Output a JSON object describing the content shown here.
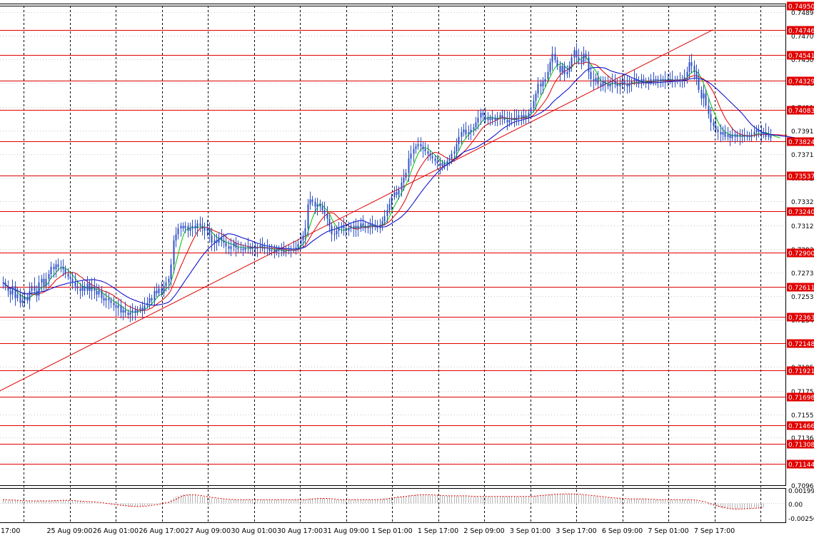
{
  "colors": {
    "background": "#ffffff",
    "grid": "#000000",
    "candles": "#2c4fc4",
    "level_line": "#e00000",
    "trendline": "#e00000",
    "ma_fast": "#00c000",
    "ma_mid": "#e00000",
    "ma_slow": "#0000c8",
    "osc_hist": "#b4b4b4",
    "osc_signal": "#e00000",
    "level_label_bg": "#e00000",
    "level_label_text": "#ffffff"
  },
  "chart_data": [
    {
      "type": "candlestick",
      "title": "",
      "xlabel": "",
      "ylabel": "",
      "ylim": [
        0.70965,
        0.7495
      ],
      "grid": true,
      "x_ticks": [
        "17:00",
        "25 Aug 09:00",
        "26 Aug 01:00",
        "26 Aug 17:00",
        "27 Aug 09:00",
        "30 Aug 01:00",
        "30 Aug 17:00",
        "31 Aug 09:00",
        "1 Sep 01:00",
        "1 Sep 17:00",
        "2 Sep 09:00",
        "3 Sep 01:00",
        "3 Sep 17:00",
        "6 Sep 09:00",
        "7 Sep 01:00",
        "7 Sep 17:00"
      ],
      "y_ticks": [
        "0.74895",
        "0.74700",
        "0.74505",
        "0.74310",
        "0.74110",
        "0.73915",
        "0.73715",
        "0.73520",
        "0.73325",
        "0.73125",
        "0.72930",
        "0.72735",
        "0.72535",
        "0.72340",
        "0.72145",
        "0.71950",
        "0.71750",
        "0.71555",
        "0.71360",
        "0.71160",
        "0.70965"
      ],
      "price_levels": [
        "0.74950",
        "0.74746",
        "0.74541",
        "0.74329",
        "0.74083",
        "0.73824",
        "0.73537",
        "0.73240",
        "0.72900",
        "0.72611",
        "0.72363",
        "0.72148",
        "0.71921",
        "0.71698",
        "0.71466",
        "0.71308",
        "0.71144"
      ],
      "trendline": {
        "start": [
          0,
          0.7175
        ],
        "end": [
          296,
          0.7475
        ]
      },
      "close": [
        0.7265,
        0.7262,
        0.7258,
        0.7255,
        0.7262,
        0.7252,
        0.7255,
        0.7248,
        0.725,
        0.7253,
        0.725,
        0.7258,
        0.7262,
        0.7258,
        0.7254,
        0.7265,
        0.7268,
        0.7262,
        0.7268,
        0.7272,
        0.7278,
        0.7276,
        0.728,
        0.7278,
        0.7278,
        0.7276,
        0.7272,
        0.727,
        0.7268,
        0.7265,
        0.7262,
        0.726,
        0.7258,
        0.7262,
        0.7258,
        0.7264,
        0.7258,
        0.7262,
        0.7258,
        0.7255,
        0.7258,
        0.7252,
        0.725,
        0.7252,
        0.725,
        0.7248,
        0.7246,
        0.7244,
        0.7246,
        0.724,
        0.7242,
        0.724,
        0.7238,
        0.724,
        0.7242,
        0.724,
        0.7242,
        0.7244,
        0.7242,
        0.7246,
        0.7248,
        0.7252,
        0.725,
        0.7258,
        0.7256,
        0.726,
        0.7256,
        0.7262,
        0.7265,
        0.7268,
        0.728,
        0.73,
        0.7305,
        0.731,
        0.7312,
        0.731,
        0.7312,
        0.7308,
        0.731,
        0.7312,
        0.731,
        0.7314,
        0.7312,
        0.731,
        0.7308,
        0.731,
        0.7304,
        0.7298,
        0.73,
        0.7298,
        0.7302,
        0.73,
        0.7298,
        0.7295,
        0.7293,
        0.7295,
        0.7298,
        0.7294,
        0.7293,
        0.7293,
        0.7292,
        0.7294,
        0.7295,
        0.7293,
        0.7295,
        0.7293,
        0.7294,
        0.7296,
        0.7294,
        0.7293,
        0.7294,
        0.7291,
        0.7292,
        0.729,
        0.7292,
        0.7293,
        0.7292,
        0.729,
        0.7291,
        0.7292,
        0.7293,
        0.7292,
        0.7294,
        0.7297,
        0.73,
        0.7304,
        0.731,
        0.733,
        0.7334,
        0.7332,
        0.7328,
        0.733,
        0.7328,
        0.7325,
        0.7322,
        0.7318,
        0.7312,
        0.7305,
        0.7305,
        0.7308,
        0.731,
        0.7312,
        0.731,
        0.7308,
        0.731,
        0.7312,
        0.731,
        0.7312,
        0.731,
        0.7314,
        0.7312,
        0.731,
        0.7312,
        0.7314,
        0.7311,
        0.7312,
        0.731,
        0.7313,
        0.7316,
        0.732,
        0.7325,
        0.733,
        0.7336,
        0.734,
        0.7338,
        0.7342,
        0.7348,
        0.7352,
        0.7356,
        0.7368,
        0.7372,
        0.7376,
        0.7378,
        0.738,
        0.7378,
        0.7376,
        0.7374,
        0.7372,
        0.737,
        0.7368,
        0.7366,
        0.7364,
        0.7362,
        0.7364,
        0.7362,
        0.7366,
        0.7368,
        0.7372,
        0.7374,
        0.738,
        0.7386,
        0.739,
        0.7392,
        0.7388,
        0.739,
        0.7392,
        0.7394,
        0.7398,
        0.7402,
        0.7406,
        0.7404,
        0.74,
        0.7402,
        0.74,
        0.7402,
        0.74,
        0.7402,
        0.7404,
        0.7402,
        0.74,
        0.7398,
        0.74,
        0.7402,
        0.74,
        0.7402,
        0.7404,
        0.7402,
        0.7404,
        0.7402,
        0.7406,
        0.741,
        0.7416,
        0.7422,
        0.743,
        0.7428,
        0.7432,
        0.7434,
        0.744,
        0.7448,
        0.7455,
        0.745,
        0.7445,
        0.744,
        0.7445,
        0.7438,
        0.744,
        0.7445,
        0.7452,
        0.7458,
        0.7452,
        0.745,
        0.7448,
        0.7455,
        0.7452,
        0.744,
        0.7434,
        0.7432,
        0.7435,
        0.743,
        0.7428,
        0.7432,
        0.743,
        0.7428,
        0.743,
        0.7432,
        0.743,
        0.7428,
        0.743,
        0.7432,
        0.743,
        0.7428,
        0.743,
        0.7432,
        0.7434,
        0.7432,
        0.743,
        0.7434,
        0.7432,
        0.743,
        0.7432,
        0.7434,
        0.7432,
        0.7434,
        0.7432,
        0.7434,
        0.7433,
        0.7434,
        0.7433,
        0.7434,
        0.7432,
        0.7433,
        0.7434,
        0.7433,
        0.7434,
        0.7436,
        0.744,
        0.7448,
        0.7445,
        0.744,
        0.7435,
        0.7425,
        0.7418,
        0.7422,
        0.7412,
        0.7405,
        0.7398,
        0.7395,
        0.7392,
        0.739,
        0.7388,
        0.739,
        0.7386,
        0.7388,
        0.7385,
        0.7388,
        0.7386,
        0.7388,
        0.7386,
        0.7387,
        0.7386,
        0.7387,
        0.7386,
        0.7388,
        0.739,
        0.7392,
        0.739,
        0.7388,
        0.739,
        0.7386,
        0.7388,
        0.7385
      ]
    },
    {
      "type": "histogram",
      "title": "",
      "ylim": [
        -0.00256,
        0.00199
      ],
      "y_ticks": [
        "0.001994",
        "0.00",
        "-0.00256"
      ],
      "histogram": [
        0.0006,
        0.0006,
        0.0005,
        0.0005,
        0.0005,
        0.0005,
        0.0005,
        0.0004,
        0.0004,
        0.0004,
        0.0004,
        0.0004,
        0.0004,
        0.0004,
        0.0004,
        0.0004,
        0.0004,
        0.0004,
        0.0004,
        0.0004,
        0.0004,
        0.0005,
        0.0005,
        0.0005,
        0.0005,
        0.0005,
        0.0005,
        0.0005,
        0.0004,
        0.0004,
        0.0004,
        0.0003,
        0.0003,
        0.0003,
        0.0003,
        0.0003,
        0.0002,
        0.0002,
        0.0002,
        0.0001,
        0.0001,
        0.0,
        0.0,
        -0.0001,
        -0.0001,
        -0.0002,
        -0.0002,
        -0.0003,
        -0.0003,
        -0.0004,
        -0.0004,
        -0.0004,
        -0.0005,
        -0.0005,
        -0.0005,
        -0.0005,
        -0.0005,
        -0.0005,
        -0.0004,
        -0.0004,
        -0.0003,
        -0.0003,
        -0.0002,
        -0.0001,
        -0.0001,
        0.0,
        0.0001,
        0.0002,
        0.0002,
        0.0003,
        0.0006,
        0.0009,
        0.0011,
        0.0012,
        0.0013,
        0.0014,
        0.0014,
        0.0014,
        0.0014,
        0.0013,
        0.0013,
        0.0012,
        0.0012,
        0.0011,
        0.001,
        0.001,
        0.0009,
        0.0009,
        0.0008,
        0.0008,
        0.0007,
        0.0007,
        0.0007,
        0.0006,
        0.0006,
        0.0006,
        0.0006,
        0.0006,
        0.0006,
        0.0006,
        0.0006,
        0.0006,
        0.0006,
        0.0006,
        0.0006,
        0.0006,
        0.0006,
        0.0006,
        0.0006,
        0.0006,
        0.0006,
        0.0006,
        0.0006,
        0.0006,
        0.0006,
        0.0006,
        0.0006,
        0.0006,
        0.0006,
        0.0006,
        0.0006,
        0.0006,
        0.0006,
        0.0006,
        0.0006,
        0.0006,
        0.0006,
        0.0007,
        0.0008,
        0.0008,
        0.0008,
        0.0008,
        0.0008,
        0.0008,
        0.0008,
        0.0008,
        0.0007,
        0.0006,
        0.0006,
        0.0006,
        0.0006,
        0.0006,
        0.0006,
        0.0006,
        0.0006,
        0.0006,
        0.0006,
        0.0006,
        0.0006,
        0.0006,
        0.0006,
        0.0006,
        0.0006,
        0.0006,
        0.0006,
        0.0006,
        0.0006,
        0.0007,
        0.0007,
        0.0008,
        0.0008,
        0.0009,
        0.001,
        0.001,
        0.001,
        0.0011,
        0.0011,
        0.0012,
        0.0012,
        0.0013,
        0.0013,
        0.0013,
        0.0014,
        0.0014,
        0.0014,
        0.0014,
        0.0014,
        0.0014,
        0.0013,
        0.0013,
        0.0013,
        0.0013,
        0.0012,
        0.0012,
        0.0012,
        0.0012,
        0.0012,
        0.0012,
        0.0012,
        0.0012,
        0.0012,
        0.0012,
        0.0012,
        0.0012,
        0.0011,
        0.0011,
        0.0011,
        0.0011,
        0.0011,
        0.0011,
        0.0011,
        0.0011,
        0.0011,
        0.0011,
        0.0011,
        0.0011,
        0.0011,
        0.0011,
        0.0011,
        0.0011,
        0.0011,
        0.0011,
        0.0011,
        0.0011,
        0.0011,
        0.0011,
        0.0011,
        0.0011,
        0.0011,
        0.0011,
        0.0012,
        0.0012,
        0.0012,
        0.0013,
        0.0013,
        0.0013,
        0.0014,
        0.0014,
        0.0014,
        0.0015,
        0.0015,
        0.0015,
        0.0015,
        0.0015,
        0.0015,
        0.0015,
        0.0015,
        0.0015,
        0.0015,
        0.0014,
        0.0014,
        0.0014,
        0.0013,
        0.0013,
        0.0012,
        0.0012,
        0.0012,
        0.0011,
        0.0011,
        0.001,
        0.001,
        0.0009,
        0.0009,
        0.0009,
        0.0008,
        0.0008,
        0.0008,
        0.0008,
        0.0008,
        0.0007,
        0.0007,
        0.0007,
        0.0007,
        0.0007,
        0.0007,
        0.0007,
        0.0007,
        0.0007,
        0.0007,
        0.0006,
        0.0006,
        0.0006,
        0.0006,
        0.0006,
        0.0006,
        0.0006,
        0.0006,
        0.0006,
        0.0006,
        0.0006,
        0.0006,
        0.0006,
        0.0006,
        0.0006,
        0.0006,
        0.0006,
        0.0006,
        0.0005,
        0.0005,
        0.0004,
        0.0003,
        0.0002,
        0.0001,
        0.0,
        -0.0002,
        -0.0003,
        -0.0004,
        -0.0005,
        -0.0006,
        -0.0007,
        -0.0008,
        -0.0008,
        -0.0009,
        -0.0009,
        -0.0009,
        -0.0009,
        -0.0009,
        -0.0009,
        -0.0008,
        -0.0008,
        -0.0008,
        -0.0008,
        -0.0008,
        -0.0007,
        -0.0007,
        -0.0007,
        -0.0006,
        -0.0006
      ]
    }
  ]
}
